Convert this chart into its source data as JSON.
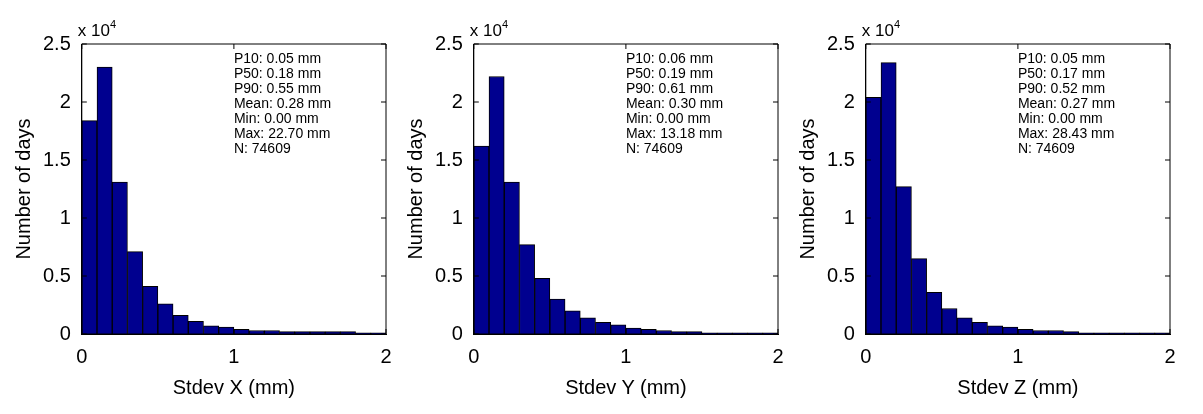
{
  "chart_data": [
    {
      "type": "histogram",
      "xlabel": "Stdev X (mm)",
      "ylabel": "Number of days",
      "color": "#00008f",
      "bins": [
        0,
        0.1,
        0.2,
        0.3,
        0.4,
        0.5,
        0.6,
        0.7,
        0.8,
        0.9,
        1,
        1.1,
        1.2,
        1.3,
        1.4,
        1.5,
        1.6,
        1.7,
        1.8,
        1.9,
        2
      ],
      "values": [
        1.84,
        2.3,
        1.31,
        0.71,
        0.41,
        0.26,
        0.16,
        0.11,
        0.07,
        0.06,
        0.04,
        0.03,
        0.03,
        0.02,
        0.02,
        0.02,
        0.02,
        0.02,
        0.01,
        0.01
      ],
      "xlim": [
        0,
        2
      ],
      "xticks": [
        0,
        1,
        2
      ],
      "ylim": [
        0,
        2.5
      ],
      "yticks": [
        0,
        0.5,
        1,
        1.5,
        2,
        2.5
      ],
      "annotations": [
        "x 10$^{4}$",
        "P10: 0.05 mm",
        "P50: 0.18 mm",
        "P90: 0.55 mm",
        "Mean: 0.28 mm",
        "Min: 0.00 mm",
        "Max: 22.70 mm",
        "N: 74609"
      ]
    },
    {
      "type": "histogram",
      "xlabel": "Stdev Y (mm)",
      "ylabel": "Number of days",
      "color": "#00008f",
      "bins": [
        0,
        0.1,
        0.2,
        0.3,
        0.4,
        0.5,
        0.6,
        0.7,
        0.8,
        0.9,
        1,
        1.1,
        1.2,
        1.3,
        1.4,
        1.5,
        1.6,
        1.7,
        1.8,
        1.9,
        2
      ],
      "values": [
        1.62,
        2.22,
        1.31,
        0.77,
        0.48,
        0.3,
        0.2,
        0.14,
        0.1,
        0.08,
        0.05,
        0.04,
        0.03,
        0.02,
        0.02,
        0.01,
        0.01,
        0.01,
        0.01,
        0.01
      ],
      "xlim": [
        0,
        2
      ],
      "xticks": [
        0,
        1,
        2
      ],
      "ylim": [
        0,
        2.5
      ],
      "yticks": [
        0,
        0.5,
        1,
        1.5,
        2,
        2.5
      ],
      "annotations": [
        "x 10$^{4}$",
        "P10: 0.06 mm",
        "P50: 0.19 mm",
        "P90: 0.61 mm",
        "Mean: 0.30 mm",
        "Min: 0.00 mm",
        "Max: 13.18 mm",
        "N: 74609"
      ]
    },
    {
      "type": "histogram",
      "xlabel": "Stdev Z (mm)",
      "ylabel": "Number of days",
      "color": "#00008f",
      "bins": [
        0,
        0.1,
        0.2,
        0.3,
        0.4,
        0.5,
        0.6,
        0.7,
        0.8,
        0.9,
        1,
        1.1,
        1.2,
        1.3,
        1.4,
        1.5,
        1.6,
        1.7,
        1.8,
        1.9,
        2
      ],
      "values": [
        2.04,
        2.34,
        1.27,
        0.65,
        0.36,
        0.22,
        0.14,
        0.1,
        0.07,
        0.06,
        0.04,
        0.03,
        0.03,
        0.02,
        0.01,
        0.01,
        0.01,
        0.01,
        0.01,
        0.01
      ],
      "xlim": [
        0,
        2
      ],
      "xticks": [
        0,
        1,
        2
      ],
      "ylim": [
        0,
        2.5
      ],
      "yticks": [
        0,
        0.5,
        1,
        1.5,
        2,
        2.5
      ],
      "annotations": [
        "x 10$^{4}$",
        "P10: 0.05 mm",
        "P50: 0.17 mm",
        "P90: 0.52 mm",
        "Mean: 0.27 mm",
        "Min: 0.00 mm",
        "Max: 28.43 mm",
        "N: 74609"
      ]
    }
  ]
}
